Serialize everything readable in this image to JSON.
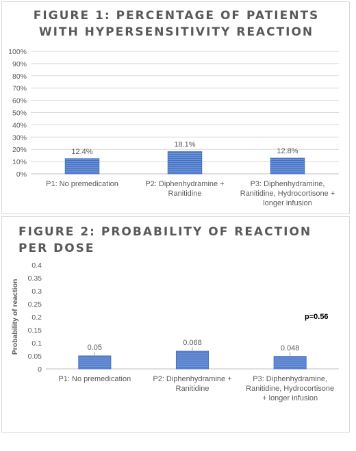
{
  "chart_data": [
    {
      "type": "bar",
      "title": "FIGURE 1: PERCENTAGE OF PATIENTS WITH HYPERSENSITIVITY REACTION",
      "title_lines": [
        "FIGURE 1: PERCENTAGE OF PATIENTS",
        "WITH HYPERSENSITIVITY REACTION"
      ],
      "categories": [
        "P1: No premedication",
        "P2: Diphenhydramine + Ranitidine",
        "P3: Diphenhydramine, Ranitidine, Hydrocortisone + longer infusion"
      ],
      "category_lines": [
        [
          "P1: No premedication"
        ],
        [
          "P2: Diphenhydramine +",
          "Ranitidine"
        ],
        [
          "P3: Diphenhydramine,",
          "Ranitidine, Hydrocortisone +",
          "longer infusion"
        ]
      ],
      "values": [
        12.4,
        18.1,
        12.8
      ],
      "data_labels": [
        "12.4%",
        "18.1%",
        "12.8%"
      ],
      "yticks": [
        "0%",
        "10%",
        "20%",
        "30%",
        "40%",
        "50%",
        "60%",
        "70%",
        "80%",
        "90%",
        "100%"
      ],
      "ylim": [
        0,
        100
      ],
      "xlabel": "",
      "ylabel": "",
      "grid": true,
      "bar_color": "#4472c4"
    },
    {
      "type": "bar",
      "title": "FIGURE 2: PROBABILITY OF REACTION PER DOSE",
      "title_lines": [
        "FIGURE 2: PROBABILITY OF REACTION",
        "PER DOSE"
      ],
      "categories": [
        "P1: No premedication",
        "P2: Diphenhydramine + Ranitidine",
        "P3: Diphenhydramine, Ranitidine, Hydrocortisone + longer infusion"
      ],
      "category_lines": [
        [
          "P1: No premedication"
        ],
        [
          "P2: Diphenhydramine +",
          "Ranitidine"
        ],
        [
          "P3: Diphenhydramine,",
          "Ranitidine, Hydrocortisone",
          "+ longer infusion"
        ]
      ],
      "values": [
        0.05,
        0.068,
        0.048
      ],
      "data_labels": [
        "0.05",
        "0.068",
        "0.048"
      ],
      "yticks": [
        "0",
        "0.05",
        "0.1",
        "0.15",
        "0.2",
        "0.25",
        "0.3",
        "0.35",
        "0.4"
      ],
      "ylim": [
        0,
        0.4
      ],
      "xlabel": "",
      "ylabel": "Probability of reaction",
      "grid": false,
      "annotation": "p=0.56",
      "bar_color": "#4472c4"
    }
  ]
}
